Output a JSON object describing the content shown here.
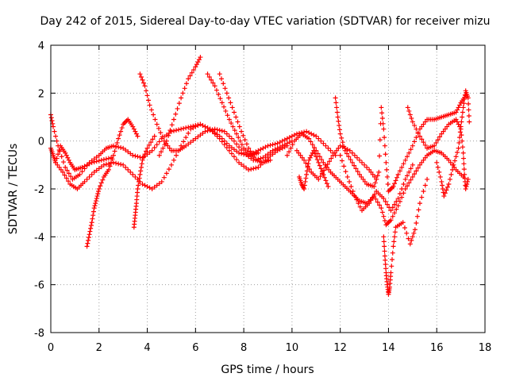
{
  "chart_data": {
    "type": "scatter",
    "title": "Day 242 of 2015, Sidereal Day-to-day VTEC variation (SDTVAR) for receiver mizu",
    "xlabel": "GPS time / hours",
    "ylabel": "SDTVAR / TECUs",
    "xlim": [
      0,
      18
    ],
    "ylim": [
      -8,
      4
    ],
    "xticks": [
      "0",
      "2",
      "4",
      "6",
      "8",
      "10",
      "12",
      "14",
      "16",
      "18"
    ],
    "yticks": [
      "-8",
      "-6",
      "-4",
      "-2",
      "0",
      "2",
      "4"
    ],
    "grid": true,
    "marker": "+",
    "color": "#ff0000",
    "series": [
      {
        "name": "arc-1",
        "points": [
          [
            0.0,
            1.1
          ],
          [
            0.1,
            0.6
          ],
          [
            0.3,
            -0.2
          ],
          [
            0.6,
            -1.1
          ],
          [
            0.9,
            -1.6
          ],
          [
            1.2,
            -1.4
          ],
          [
            1.6,
            -0.9
          ],
          [
            2.0,
            -0.6
          ],
          [
            2.3,
            -0.3
          ],
          [
            2.6,
            -0.2
          ],
          [
            3.0,
            -0.3
          ],
          [
            3.4,
            -0.6
          ],
          [
            3.8,
            -0.7
          ],
          [
            4.2,
            -0.4
          ],
          [
            4.6,
            0.1
          ],
          [
            5.0,
            0.4
          ],
          [
            5.4,
            0.5
          ],
          [
            5.8,
            0.6
          ],
          [
            6.2,
            0.7
          ],
          [
            6.6,
            0.5
          ],
          [
            7.0,
            0.2
          ],
          [
            7.4,
            -0.2
          ],
          [
            7.8,
            -0.5
          ],
          [
            8.2,
            -0.6
          ],
          [
            8.6,
            -0.4
          ],
          [
            9.0,
            -0.2
          ],
          [
            9.4,
            -0.1
          ],
          [
            9.8,
            0.1
          ],
          [
            10.2,
            0.3
          ],
          [
            10.6,
            0.4
          ],
          [
            11.0,
            0.2
          ],
          [
            11.4,
            -0.2
          ],
          [
            11.8,
            -0.6
          ]
        ]
      },
      {
        "name": "arc-2",
        "points": [
          [
            0.2,
            -0.9
          ],
          [
            0.5,
            -1.3
          ],
          [
            0.8,
            -1.8
          ],
          [
            1.1,
            -2.0
          ],
          [
            1.4,
            -1.7
          ],
          [
            1.8,
            -1.3
          ],
          [
            2.2,
            -1.0
          ],
          [
            2.6,
            -0.9
          ],
          [
            3.0,
            -1.0
          ],
          [
            3.4,
            -1.4
          ],
          [
            3.8,
            -1.8
          ],
          [
            4.2,
            -2.0
          ],
          [
            4.6,
            -1.7
          ],
          [
            5.0,
            -1.0
          ],
          [
            5.4,
            -0.2
          ],
          [
            5.8,
            0.5
          ],
          [
            6.2,
            0.7
          ],
          [
            6.6,
            0.5
          ],
          [
            7.0,
            0.1
          ],
          [
            7.4,
            -0.4
          ],
          [
            7.8,
            -0.9
          ],
          [
            8.2,
            -1.2
          ],
          [
            8.6,
            -1.1
          ],
          [
            9.0,
            -0.7
          ],
          [
            9.4,
            -0.4
          ],
          [
            9.8,
            -0.2
          ]
        ]
      },
      {
        "name": "arc-3",
        "points": [
          [
            3.7,
            2.8
          ],
          [
            3.9,
            2.3
          ],
          [
            4.1,
            1.5
          ],
          [
            4.4,
            0.7
          ],
          [
            4.7,
            0.0
          ],
          [
            5.0,
            -0.4
          ],
          [
            5.3,
            -0.4
          ],
          [
            5.6,
            -0.2
          ],
          [
            6.0,
            0.1
          ],
          [
            6.4,
            0.4
          ],
          [
            6.8,
            0.5
          ],
          [
            7.2,
            0.4
          ],
          [
            7.6,
            0.0
          ],
          [
            8.0,
            -0.5
          ],
          [
            8.4,
            -0.8
          ],
          [
            8.8,
            -0.7
          ],
          [
            9.2,
            -0.4
          ],
          [
            9.6,
            -0.2
          ],
          [
            10.0,
            0.0
          ]
        ]
      },
      {
        "name": "arc-4",
        "points": [
          [
            4.5,
            -0.6
          ],
          [
            4.8,
            0.0
          ],
          [
            5.1,
            0.9
          ],
          [
            5.4,
            1.8
          ],
          [
            5.7,
            2.6
          ],
          [
            6.0,
            3.1
          ],
          [
            6.2,
            3.5
          ]
        ]
      },
      {
        "name": "arc-5",
        "points": [
          [
            6.5,
            2.8
          ],
          [
            6.8,
            2.3
          ],
          [
            7.1,
            1.6
          ],
          [
            7.4,
            0.9
          ],
          [
            7.7,
            0.3
          ],
          [
            8.0,
            -0.3
          ],
          [
            8.3,
            -0.6
          ],
          [
            8.6,
            -0.5
          ]
        ]
      },
      {
        "name": "arc-6",
        "points": [
          [
            7.0,
            2.8
          ],
          [
            7.3,
            2.0
          ],
          [
            7.6,
            1.2
          ],
          [
            7.9,
            0.4
          ],
          [
            8.2,
            -0.3
          ],
          [
            8.5,
            -0.8
          ],
          [
            8.8,
            -0.9
          ],
          [
            9.1,
            -0.8
          ]
        ]
      },
      {
        "name": "arc-7",
        "points": [
          [
            1.5,
            -4.4
          ],
          [
            1.6,
            -3.9
          ],
          [
            1.7,
            -3.4
          ],
          [
            1.8,
            -2.8
          ],
          [
            1.9,
            -2.4
          ],
          [
            2.0,
            -2.0
          ],
          [
            2.2,
            -1.5
          ],
          [
            2.4,
            -1.2
          ],
          [
            2.6,
            -0.6
          ],
          [
            2.8,
            0.1
          ],
          [
            3.0,
            0.7
          ],
          [
            3.2,
            0.9
          ],
          [
            3.4,
            0.6
          ],
          [
            3.6,
            0.2
          ]
        ]
      },
      {
        "name": "arc-8",
        "points": [
          [
            3.45,
            -3.6
          ],
          [
            3.5,
            -3.1
          ],
          [
            3.55,
            -2.6
          ],
          [
            3.6,
            -2.0
          ],
          [
            3.7,
            -1.4
          ],
          [
            3.8,
            -0.8
          ],
          [
            4.0,
            -0.3
          ],
          [
            4.3,
            0.2
          ]
        ]
      },
      {
        "name": "arc-9",
        "points": [
          [
            9.8,
            -0.6
          ],
          [
            10.1,
            0.0
          ],
          [
            10.4,
            0.3
          ],
          [
            10.7,
            0.1
          ],
          [
            11.0,
            -0.4
          ],
          [
            11.3,
            -0.9
          ],
          [
            11.6,
            -1.3
          ],
          [
            11.9,
            -1.6
          ],
          [
            12.2,
            -1.9
          ],
          [
            12.5,
            -2.2
          ],
          [
            12.8,
            -2.5
          ],
          [
            13.1,
            -2.6
          ],
          [
            13.4,
            -2.3
          ],
          [
            13.7,
            -2.8
          ],
          [
            13.9,
            -3.5
          ],
          [
            14.1,
            -3.3
          ],
          [
            14.4,
            -2.7
          ],
          [
            14.7,
            -2.0
          ],
          [
            15.0,
            -1.5
          ],
          [
            15.3,
            -1.0
          ],
          [
            15.6,
            -0.6
          ],
          [
            15.9,
            -0.4
          ],
          [
            16.2,
            -0.5
          ],
          [
            16.5,
            -0.8
          ],
          [
            16.8,
            -1.2
          ],
          [
            17.1,
            -1.5
          ]
        ]
      },
      {
        "name": "arc-10",
        "points": [
          [
            11.8,
            1.8
          ],
          [
            11.9,
            1.0
          ],
          [
            12.0,
            0.3
          ],
          [
            12.2,
            -0.4
          ],
          [
            12.5,
            -0.9
          ],
          [
            12.8,
            -1.4
          ],
          [
            13.1,
            -1.8
          ],
          [
            13.4,
            -1.9
          ],
          [
            13.6,
            -1.3
          ],
          [
            13.7,
            1.4
          ],
          [
            13.8,
            0.5
          ],
          [
            13.9,
            -0.9
          ],
          [
            14.0,
            -2.1
          ],
          [
            14.2,
            -1.9
          ],
          [
            14.4,
            -1.4
          ],
          [
            14.7,
            -0.8
          ],
          [
            15.0,
            -0.2
          ],
          [
            15.3,
            0.5
          ],
          [
            15.6,
            0.9
          ],
          [
            15.9,
            0.9
          ],
          [
            16.2,
            1.0
          ],
          [
            16.5,
            1.1
          ],
          [
            16.8,
            1.2
          ],
          [
            17.0,
            1.6
          ],
          [
            17.2,
            1.9
          ]
        ]
      },
      {
        "name": "arc-11",
        "points": [
          [
            13.8,
            -4.0
          ],
          [
            13.85,
            -4.8
          ],
          [
            13.9,
            -5.5
          ],
          [
            13.95,
            -6.0
          ],
          [
            14.0,
            -6.4
          ],
          [
            14.05,
            -6.1
          ],
          [
            14.1,
            -5.5
          ],
          [
            14.2,
            -4.4
          ],
          [
            14.3,
            -3.6
          ],
          [
            14.6,
            -3.4
          ],
          [
            14.9,
            -4.3
          ],
          [
            15.1,
            -3.7
          ],
          [
            15.3,
            -2.6
          ],
          [
            15.6,
            -1.6
          ]
        ]
      },
      {
        "name": "arc-12",
        "points": [
          [
            14.8,
            1.4
          ],
          [
            15.0,
            0.8
          ],
          [
            15.3,
            0.2
          ],
          [
            15.6,
            -0.3
          ],
          [
            15.9,
            -0.2
          ],
          [
            16.2,
            0.3
          ],
          [
            16.5,
            0.7
          ],
          [
            16.8,
            0.9
          ],
          [
            17.0,
            0.5
          ],
          [
            17.1,
            -0.5
          ],
          [
            17.15,
            -1.4
          ],
          [
            17.2,
            -2.0
          ],
          [
            17.3,
            -1.6
          ]
        ]
      },
      {
        "name": "arc-13",
        "points": [
          [
            16.0,
            -0.9
          ],
          [
            16.2,
            -1.7
          ],
          [
            16.3,
            -2.3
          ],
          [
            16.5,
            -1.8
          ],
          [
            16.7,
            -1.0
          ],
          [
            16.9,
            -0.3
          ],
          [
            17.0,
            0.6
          ],
          [
            17.1,
            1.4
          ],
          [
            17.2,
            2.1
          ],
          [
            17.3,
            1.8
          ],
          [
            17.35,
            0.8
          ]
        ]
      },
      {
        "name": "arc-14",
        "points": [
          [
            12.0,
            -0.6
          ],
          [
            12.3,
            -1.5
          ],
          [
            12.6,
            -2.3
          ],
          [
            12.9,
            -2.9
          ],
          [
            13.2,
            -2.6
          ],
          [
            13.5,
            -2.1
          ],
          [
            13.8,
            -2.4
          ],
          [
            14.1,
            -2.9
          ],
          [
            14.4,
            -2.4
          ],
          [
            14.7,
            -1.6
          ],
          [
            15.0,
            -1.0
          ]
        ]
      },
      {
        "name": "arc-15",
        "points": [
          [
            10.2,
            -0.4
          ],
          [
            10.5,
            -0.8
          ],
          [
            10.8,
            -1.3
          ],
          [
            11.1,
            -1.6
          ],
          [
            11.4,
            -1.1
          ],
          [
            11.7,
            -0.6
          ],
          [
            12.0,
            -0.2
          ],
          [
            12.4,
            -0.4
          ],
          [
            12.8,
            -0.8
          ],
          [
            13.2,
            -1.2
          ],
          [
            13.5,
            -1.6
          ]
        ]
      },
      {
        "name": "arc-16",
        "points": [
          [
            0.0,
            -0.3
          ],
          [
            0.1,
            -0.6
          ],
          [
            0.2,
            -0.9
          ],
          [
            0.4,
            -0.2
          ],
          [
            0.6,
            -0.5
          ],
          [
            0.8,
            -0.9
          ],
          [
            1.0,
            -1.2
          ],
          [
            1.3,
            -1.1
          ],
          [
            1.7,
            -0.9
          ],
          [
            2.1,
            -0.8
          ],
          [
            2.5,
            -0.7
          ]
        ]
      },
      {
        "name": "arc-17",
        "points": [
          [
            10.3,
            -1.5
          ],
          [
            10.4,
            -1.8
          ],
          [
            10.5,
            -2.0
          ],
          [
            10.6,
            -1.4
          ],
          [
            10.7,
            -0.8
          ],
          [
            10.9,
            -0.4
          ],
          [
            11.1,
            -0.9
          ],
          [
            11.3,
            -1.4
          ],
          [
            11.5,
            -1.9
          ]
        ]
      }
    ]
  }
}
